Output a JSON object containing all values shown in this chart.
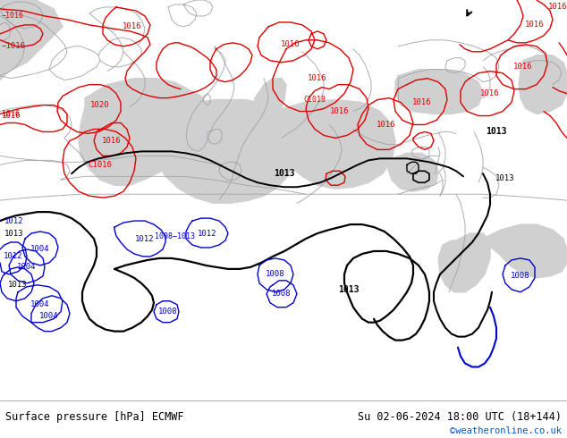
{
  "land_color": "#b8e890",
  "sea_color": "#d0d0d0",
  "border_color": "#a0a0a8",
  "bottom_bar_color": "#ffffff",
  "bottom_text_left": "Surface pressure [hPa] ECMWF",
  "bottom_text_right": "Su 02-06-2024 18:00 UTC (18+144)",
  "bottom_text_credit": "©weatheronline.co.uk",
  "credit_color": "#0055cc",
  "text_color": "#000000",
  "fig_width": 6.34,
  "fig_height": 4.9,
  "dpi": 100
}
